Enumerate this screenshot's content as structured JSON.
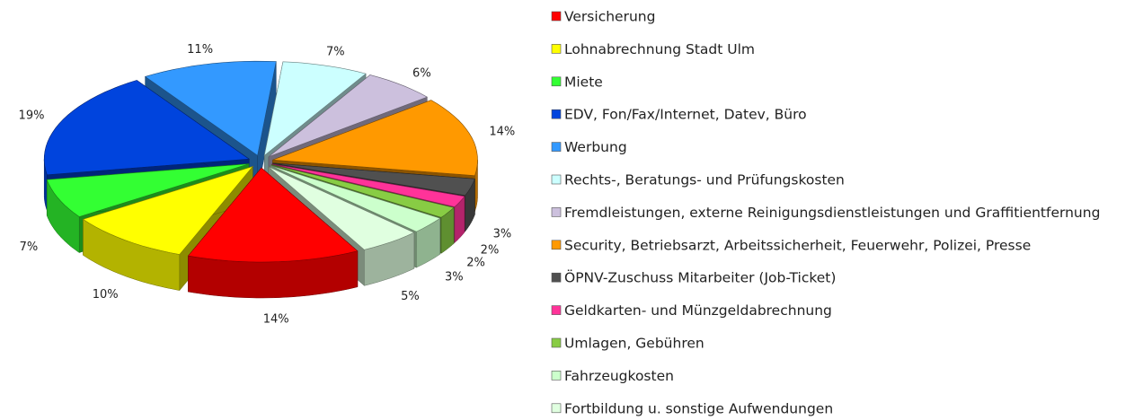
{
  "chart_data": {
    "type": "pie3d",
    "categories": [
      "Versicherung",
      "Lohnabrechnung Stadt Ulm",
      "Miete",
      "EDV, Fon/Fax/Internet, Datev, Büro",
      "Werbung",
      "Rechts-, Beratungs- und Prüfungskosten",
      "Fremdleistungen, externe Reinigungsdienstleistungen und Graffitientfernung",
      "Security, Betriebsarzt, Arbeitssicherheit, Feuerwehr, Polizei, Presse",
      "ÖPNV-Zuschuss Mitarbeiter (Job-Ticket)",
      "Geldkarten- und Münzgeldabrechnung",
      "Umlagen, Gebühren",
      "Fahrzeugkosten",
      "Fortbildung u. sonstige Aufwendungen"
    ],
    "values": [
      14,
      10,
      7,
      19,
      11,
      7,
      6,
      14,
      3,
      2,
      2,
      3,
      5
    ],
    "value_labels": [
      "14%",
      "10%",
      "7%",
      "19%",
      "11%",
      "7%",
      "6%",
      "14%",
      "3%",
      "2%",
      "2%",
      "3%",
      "5%"
    ],
    "colors": [
      "#ff0000",
      "#ffff00",
      "#33ff33",
      "#0044dd",
      "#3399ff",
      "#ccffff",
      "#ccc0dd",
      "#ff9900",
      "#505050",
      "#ff3399",
      "#88cc44",
      "#ccffcc",
      "#e0ffe0"
    ],
    "legend": "right"
  }
}
